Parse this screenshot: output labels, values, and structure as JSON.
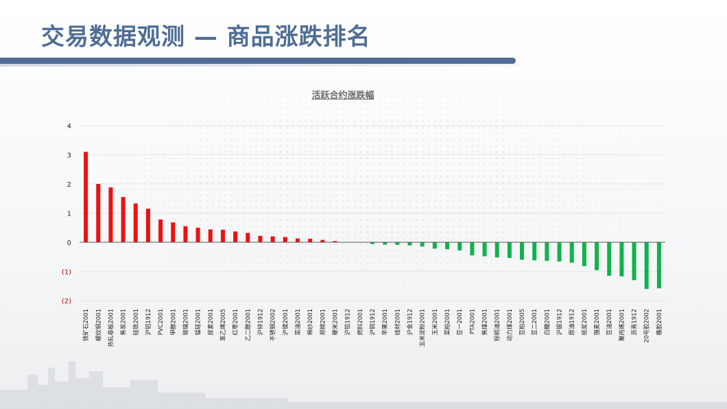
{
  "header": {
    "title": "交易数据观测 — 商品涨跌排名"
  },
  "colors": {
    "accent": "#4f6d95",
    "up": "#ee1111",
    "down": "#12b24c",
    "negative_tick": "#c00000"
  },
  "chart_data": {
    "type": "bar",
    "title": "活跃合约涨跌幅",
    "xlabel": "",
    "ylabel": "",
    "ylim": [
      -2,
      4
    ],
    "yticks": [
      "4",
      "3",
      "2",
      "1",
      "0",
      "(1)",
      "(2)"
    ],
    "grid": true,
    "legend": "none",
    "categories": [
      "铁矿石2001",
      "螺纹钢2001",
      "热轧卷板2001",
      "焦炭2001",
      "硅铁2001",
      "沪铝1912",
      "PVC2001",
      "甲醇2001",
      "玻璃2001",
      "锰硅2001",
      "尿素2001",
      "苯乙烯2005",
      "红枣2001",
      "乙二醇2001",
      "沪锌1912",
      "不锈钢2002",
      "沪镍2001",
      "菜油2001",
      "棉纱2001",
      "郑棉2001",
      "粳米2001",
      "沪铅1912",
      "燃料2001",
      "沪铜1912",
      "苹果2001",
      "线材2001",
      "沪金1912",
      "玉米淀粉2001",
      "玉米2001",
      "菜粕2001",
      "豆一2001",
      "PTA2001",
      "焦煤2001",
      "棕榈油2001",
      "动力煤2001",
      "豆粕2005",
      "豆二2001",
      "白糖2001",
      "沪银1912",
      "原油1912",
      "纸浆2001",
      "强麦2001",
      "豆油2001",
      "聚丙烯2001",
      "沥青1912",
      "20号胶2002",
      "橡胶2001"
    ],
    "values": [
      3.1,
      2.0,
      1.88,
      1.55,
      1.33,
      1.15,
      0.78,
      0.68,
      0.55,
      0.5,
      0.44,
      0.43,
      0.37,
      0.32,
      0.22,
      0.2,
      0.18,
      0.13,
      0.12,
      0.08,
      0.04,
      0.0,
      0.0,
      -0.06,
      -0.08,
      -0.09,
      -0.11,
      -0.15,
      -0.22,
      -0.24,
      -0.28,
      -0.45,
      -0.48,
      -0.52,
      -0.54,
      -0.6,
      -0.62,
      -0.64,
      -0.66,
      -0.7,
      -0.82,
      -0.96,
      -1.15,
      -1.17,
      -1.3,
      -1.6,
      -1.58
    ]
  }
}
